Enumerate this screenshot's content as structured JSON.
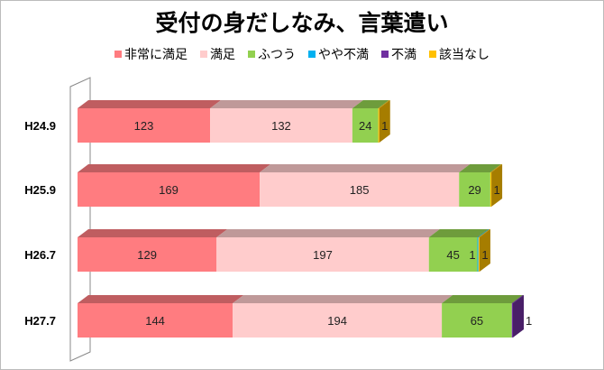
{
  "chart_data": {
    "type": "bar",
    "orientation": "horizontal",
    "stacked": true,
    "style": "3d",
    "title": "受付の身だしなみ、言葉遣い",
    "legend_position": "top",
    "categories": [
      "H24.9",
      "H25.9",
      "H26.7",
      "H27.7"
    ],
    "series": [
      {
        "name": "非常に満足",
        "color": "#ff7c80",
        "values": [
          123,
          169,
          129,
          144
        ]
      },
      {
        "name": "満足",
        "color": "#ffcccc",
        "values": [
          132,
          185,
          197,
          194
        ]
      },
      {
        "name": "ふつう",
        "color": "#92d050",
        "values": [
          24,
          29,
          45,
          65
        ]
      },
      {
        "name": "やや不満",
        "color": "#00b0f0",
        "values": [
          0,
          0,
          1,
          0
        ]
      },
      {
        "name": "不満",
        "color": "#7030a0",
        "values": [
          0,
          0,
          0,
          1
        ]
      },
      {
        "name": "該当なし",
        "color": "#ffc000",
        "values": [
          1,
          1,
          1,
          0
        ]
      }
    ],
    "data_labels": true,
    "grid": false
  }
}
